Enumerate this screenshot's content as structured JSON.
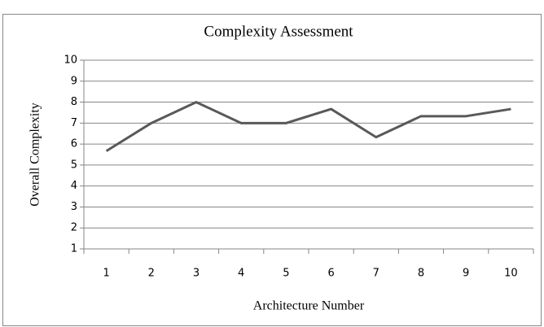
{
  "chart_data": {
    "type": "line",
    "title": "Complexity Assessment",
    "x_label": "Architecture Number",
    "y_label": "Overall Complexity",
    "categories": [
      "1",
      "2",
      "3",
      "4",
      "5",
      "6",
      "7",
      "8",
      "9",
      "10"
    ],
    "series": [
      {
        "name": "Overall Complexity",
        "color": "#595959",
        "values": [
          5.67,
          7,
          8,
          7,
          7,
          7.67,
          6.33,
          7.33,
          7.33,
          7.67
        ]
      }
    ],
    "ylim": [
      1,
      10
    ],
    "yticks": [
      1,
      2,
      3,
      4,
      5,
      6,
      7,
      8,
      9,
      10
    ],
    "grid": true
  }
}
